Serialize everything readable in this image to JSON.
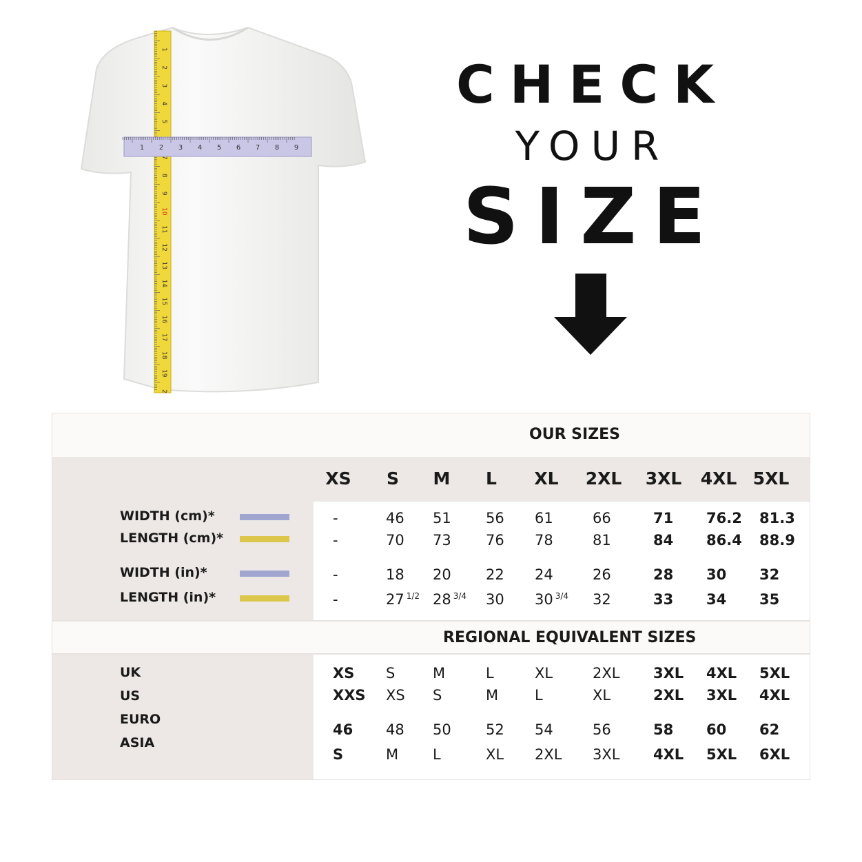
{
  "heading": {
    "line1": "CHECK",
    "line2": "YOUR",
    "line3": "SIZE"
  },
  "tape": {
    "vertical_numbers": [
      "1",
      "2",
      "3",
      "4",
      "5",
      "6",
      "7",
      "8",
      "9",
      "10",
      "11",
      "12",
      "13",
      "14",
      "15",
      "16",
      "17",
      "18",
      "19",
      "2"
    ],
    "horizontal_numbers": [
      "1",
      "2",
      "3",
      "4",
      "5",
      "6",
      "7",
      "8",
      "9"
    ],
    "vertical_color": "#f1d83a",
    "horizontal_color": "#c9c6e6"
  },
  "colors": {
    "width_swatch": "#a0a6cf",
    "length_swatch": "#dcc74a",
    "panel_gray": "#ede8e6",
    "panel_light": "#fbfaf8"
  },
  "table": {
    "our_sizes_title": "OUR SIZES",
    "sizes": [
      "XS",
      "S",
      "M",
      "L",
      "XL",
      "2XL",
      "3XL",
      "4XL",
      "5XL"
    ],
    "measure_rows": [
      {
        "label": "WIDTH (cm)*",
        "swatch": "width",
        "values": [
          [
            "-"
          ],
          [
            "46"
          ],
          [
            "51"
          ],
          [
            "56"
          ],
          [
            "61"
          ],
          [
            "66"
          ],
          [
            "71"
          ],
          [
            "76.2"
          ],
          [
            "81.3"
          ]
        ]
      },
      {
        "label": "LENGTH (cm)*",
        "swatch": "length",
        "values": [
          [
            "-"
          ],
          [
            "70"
          ],
          [
            "73"
          ],
          [
            "76"
          ],
          [
            "78"
          ],
          [
            "81"
          ],
          [
            "84"
          ],
          [
            "86.4"
          ],
          [
            "88.9"
          ]
        ]
      },
      {
        "label": "WIDTH (in)*",
        "swatch": "width",
        "values": [
          [
            "-"
          ],
          [
            "18"
          ],
          [
            "20"
          ],
          [
            "22"
          ],
          [
            "24"
          ],
          [
            "26"
          ],
          [
            "28"
          ],
          [
            "30"
          ],
          [
            "32"
          ]
        ]
      },
      {
        "label": "LENGTH (in)*",
        "swatch": "length",
        "values": [
          [
            "-"
          ],
          [
            "27",
            "1/2"
          ],
          [
            "28",
            "3/4"
          ],
          [
            "30"
          ],
          [
            "30",
            "3/4"
          ],
          [
            "32"
          ],
          [
            "33"
          ],
          [
            "34"
          ],
          [
            "35"
          ]
        ]
      }
    ],
    "regional_title": "REGIONAL EQUIVALENT SIZES",
    "regional_labels": [
      "UK",
      "US",
      "EURO",
      "ASIA"
    ],
    "regional_rows": [
      [
        "XS",
        "S",
        "M",
        "L",
        "XL",
        "2XL",
        "3XL",
        "4XL",
        "5XL"
      ],
      [
        "XXS",
        "XS",
        "S",
        "M",
        "L",
        "XL",
        "2XL",
        "3XL",
        "4XL"
      ],
      [
        "46",
        "48",
        "50",
        "52",
        "54",
        "56",
        "58",
        "60",
        "62"
      ],
      [
        "S",
        "M",
        "L",
        "XL",
        "2XL",
        "3XL",
        "4XL",
        "5XL",
        "6XL"
      ]
    ]
  }
}
